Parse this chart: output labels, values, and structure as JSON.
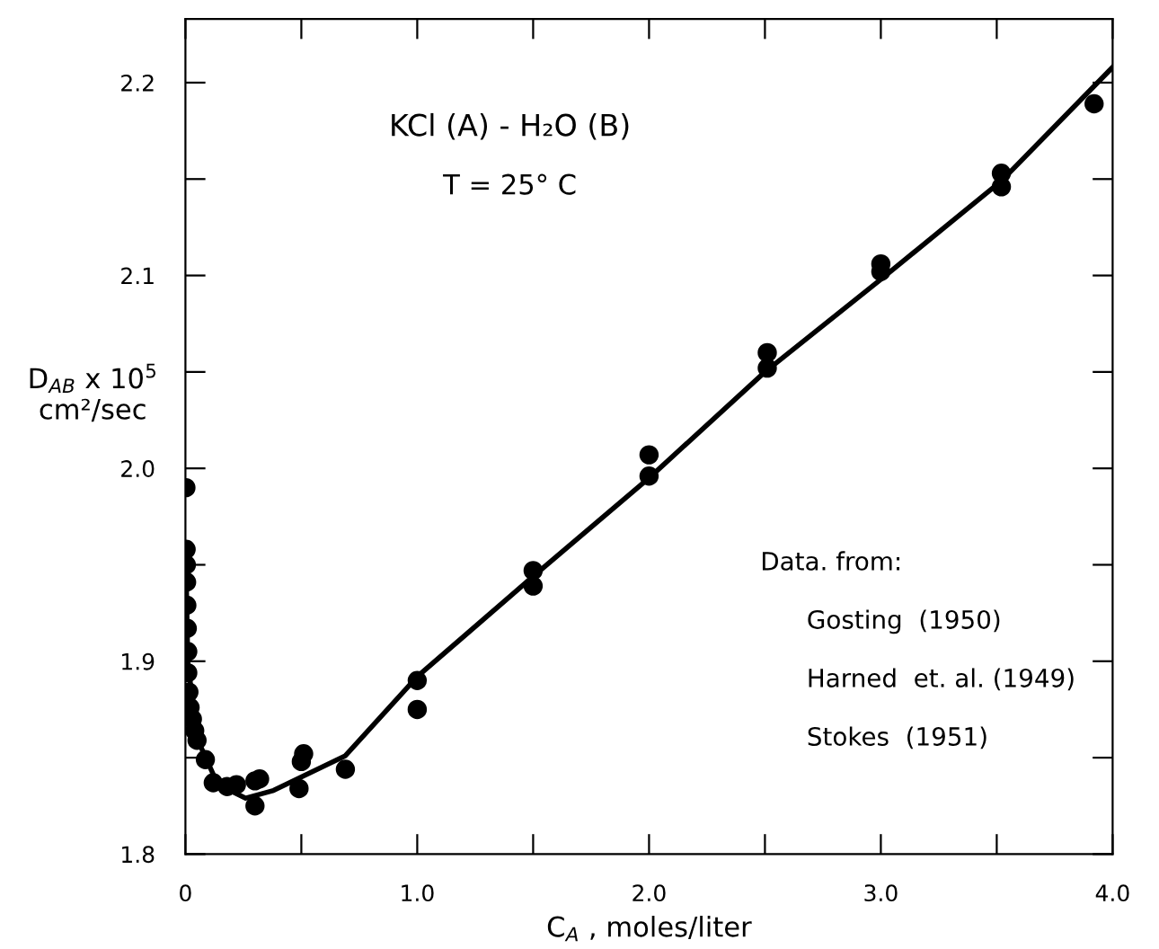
{
  "chart_data": {
    "type": "scatter",
    "xlabel": "C$_{A}$ , moles/liter",
    "ylabel": "D$_{AB}$ x 10$^{5}$\ncm²/sec",
    "xlim": [
      0,
      4.0
    ],
    "ylim": [
      1.8,
      2.233
    ],
    "xticks": [
      {
        "value": 0,
        "label": "0"
      },
      {
        "value": 0.5,
        "label": null
      },
      {
        "value": 1.0,
        "label": "1.0"
      },
      {
        "value": 1.5,
        "label": null
      },
      {
        "value": 2.0,
        "label": "2.0"
      },
      {
        "value": 2.5,
        "label": null
      },
      {
        "value": 3.0,
        "label": "3.0"
      },
      {
        "value": 3.5,
        "label": null
      },
      {
        "value": 4.0,
        "label": "4.0"
      }
    ],
    "yticks": [
      1.8,
      {
        "value": 1.85,
        "label": null
      },
      1.9,
      {
        "value": 1.95,
        "label": null
      },
      {
        "value": 2.0,
        "label": "2.0"
      },
      {
        "value": 2.05,
        "label": null
      },
      2.1,
      {
        "value": 2.15,
        "label": null
      },
      2.2
    ],
    "annotations": [
      "KCl (A) - H₂O (B)",
      "T = 25° C",
      "Data. from:",
      "Gosting  (1950)",
      "Harned  et. al. (1949)",
      "Stokes  (1951)"
    ],
    "grid": false,
    "legend": false,
    "series": [
      {
        "marker": "circle",
        "color": "#000000",
        "x": [
          3.92,
          3.52,
          3.52,
          3.0,
          3.0,
          2.51,
          2.51,
          2.0,
          2.0,
          1.5,
          1.5,
          1.0,
          1.0,
          0.69,
          0.51,
          0.5,
          0.49,
          0.32,
          0.3,
          0.3,
          0.22,
          0.18,
          0.12,
          0.086,
          0.05,
          0.04,
          0.03,
          0.02,
          0.015,
          0.01,
          0.01,
          0.008,
          0.006,
          0.005,
          0.004,
          0.003,
          0.002
        ],
        "values": [
          2.189,
          2.153,
          2.146,
          2.106,
          2.102,
          2.06,
          2.052,
          2.007,
          1.996,
          1.947,
          1.939,
          1.89,
          1.875,
          1.844,
          1.852,
          1.848,
          1.834,
          1.839,
          1.838,
          1.825,
          1.836,
          1.835,
          1.837,
          1.849,
          1.859,
          1.864,
          1.87,
          1.876,
          1.884,
          1.894,
          1.905,
          1.917,
          1.929,
          1.941,
          1.95,
          1.958,
          1.99
        ]
      },
      {
        "type": "line",
        "marker": "none",
        "color": "#000000",
        "x": [
          0.004,
          0.01,
          0.05,
          0.14,
          0.26,
          0.38,
          0.69,
          1.0,
          1.5,
          2.0,
          2.5,
          3.0,
          3.52,
          4.0
        ],
        "values": [
          1.94,
          1.9,
          1.86,
          1.836,
          1.829,
          1.833,
          1.851,
          1.892,
          1.944,
          1.995,
          2.05,
          2.098,
          2.149,
          2.208
        ]
      }
    ]
  }
}
